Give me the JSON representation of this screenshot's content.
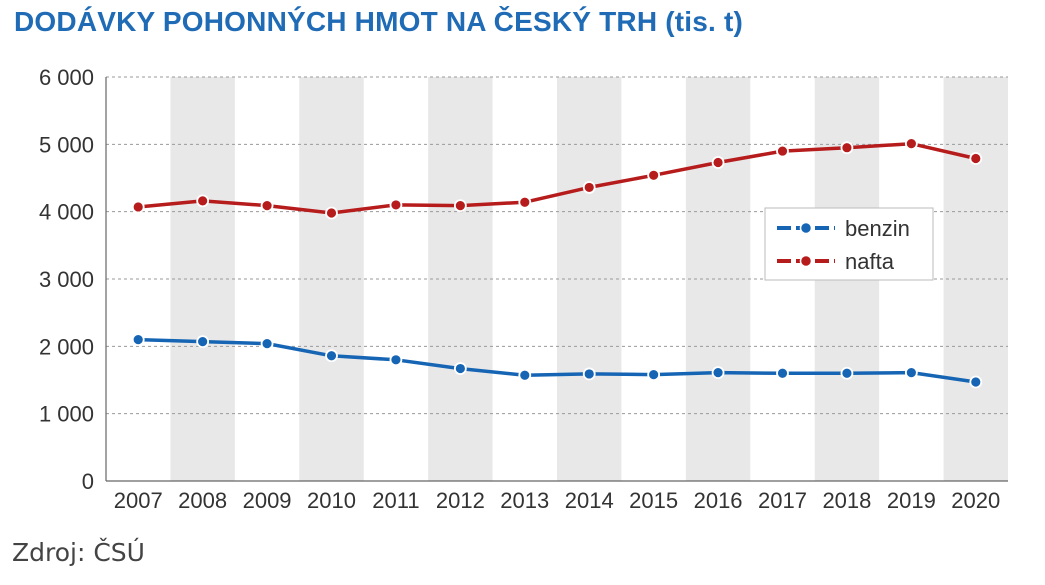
{
  "chart_data": {
    "type": "line",
    "title": "DODÁVKY POHONNÝCH HMOT NA ČESKÝ TRH (tis. t)",
    "categories": [
      "2007",
      "2008",
      "2009",
      "2010",
      "2011",
      "2012",
      "2013",
      "2014",
      "2015",
      "2016",
      "2017",
      "2018",
      "2019",
      "2020"
    ],
    "yticks": [
      0,
      1000,
      2000,
      3000,
      4000,
      5000,
      6000
    ],
    "ytick_labels": [
      "0",
      "1 000",
      "2 000",
      "3 000",
      "4 000",
      "5 000",
      "6 000"
    ],
    "ylim": [
      0,
      6000
    ],
    "grid": true,
    "legend_position": "right-middle",
    "series": [
      {
        "name": "benzin",
        "color": "#1665b4",
        "values": [
          2100,
          2070,
          2040,
          1860,
          1800,
          1670,
          1570,
          1590,
          1580,
          1610,
          1600,
          1600,
          1610,
          1470
        ]
      },
      {
        "name": "nafta",
        "color": "#b71c1c",
        "values": [
          4070,
          4160,
          4090,
          3980,
          4100,
          4090,
          4140,
          4360,
          4540,
          4730,
          4900,
          4950,
          5010,
          4790
        ]
      }
    ]
  },
  "source_note": "Zdroj: ČSÚ",
  "colors": {
    "title": "#1f6bb5",
    "band": "#e8e8e8",
    "grid": "#9a9a9a"
  }
}
